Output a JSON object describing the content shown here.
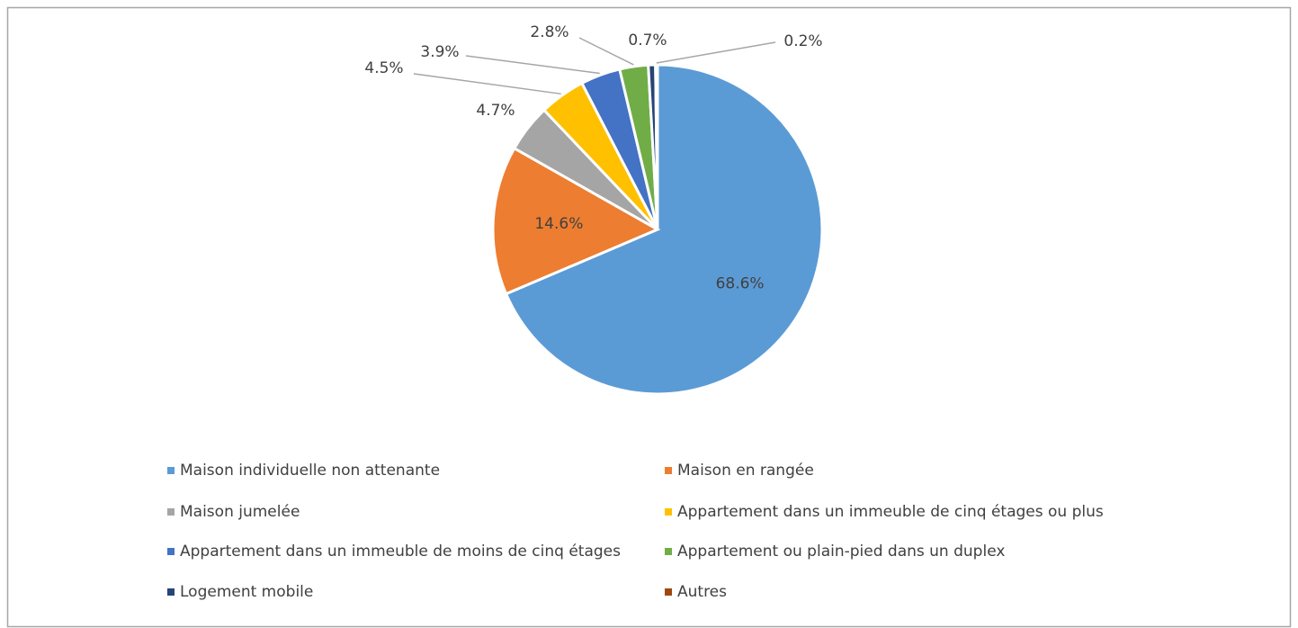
{
  "chart_data": {
    "type": "pie",
    "categories": [
      "Maison individuelle non attenante",
      "Maison en rangée",
      "Maison jumelée",
      "Appartement dans un immeuble de cinq étages ou plus",
      "Appartement dans un immeuble de moins de cinq étages",
      "Appartement ou plain-pied dans un duplex",
      "Logement mobile",
      "Autres"
    ],
    "values": [
      68.6,
      14.6,
      4.7,
      4.5,
      3.9,
      2.8,
      0.7,
      0.2
    ],
    "value_labels": [
      "68.6%",
      "14.6%",
      "4.7%",
      "4.5%",
      "3.9%",
      "2.8%",
      "0.7%",
      "0.2%"
    ],
    "colors": [
      "#5b9bd5",
      "#ed7d31",
      "#a5a5a5",
      "#ffc000",
      "#4472c4",
      "#70ad47",
      "#264478",
      "#9e480e"
    ],
    "legend": "bottom"
  }
}
